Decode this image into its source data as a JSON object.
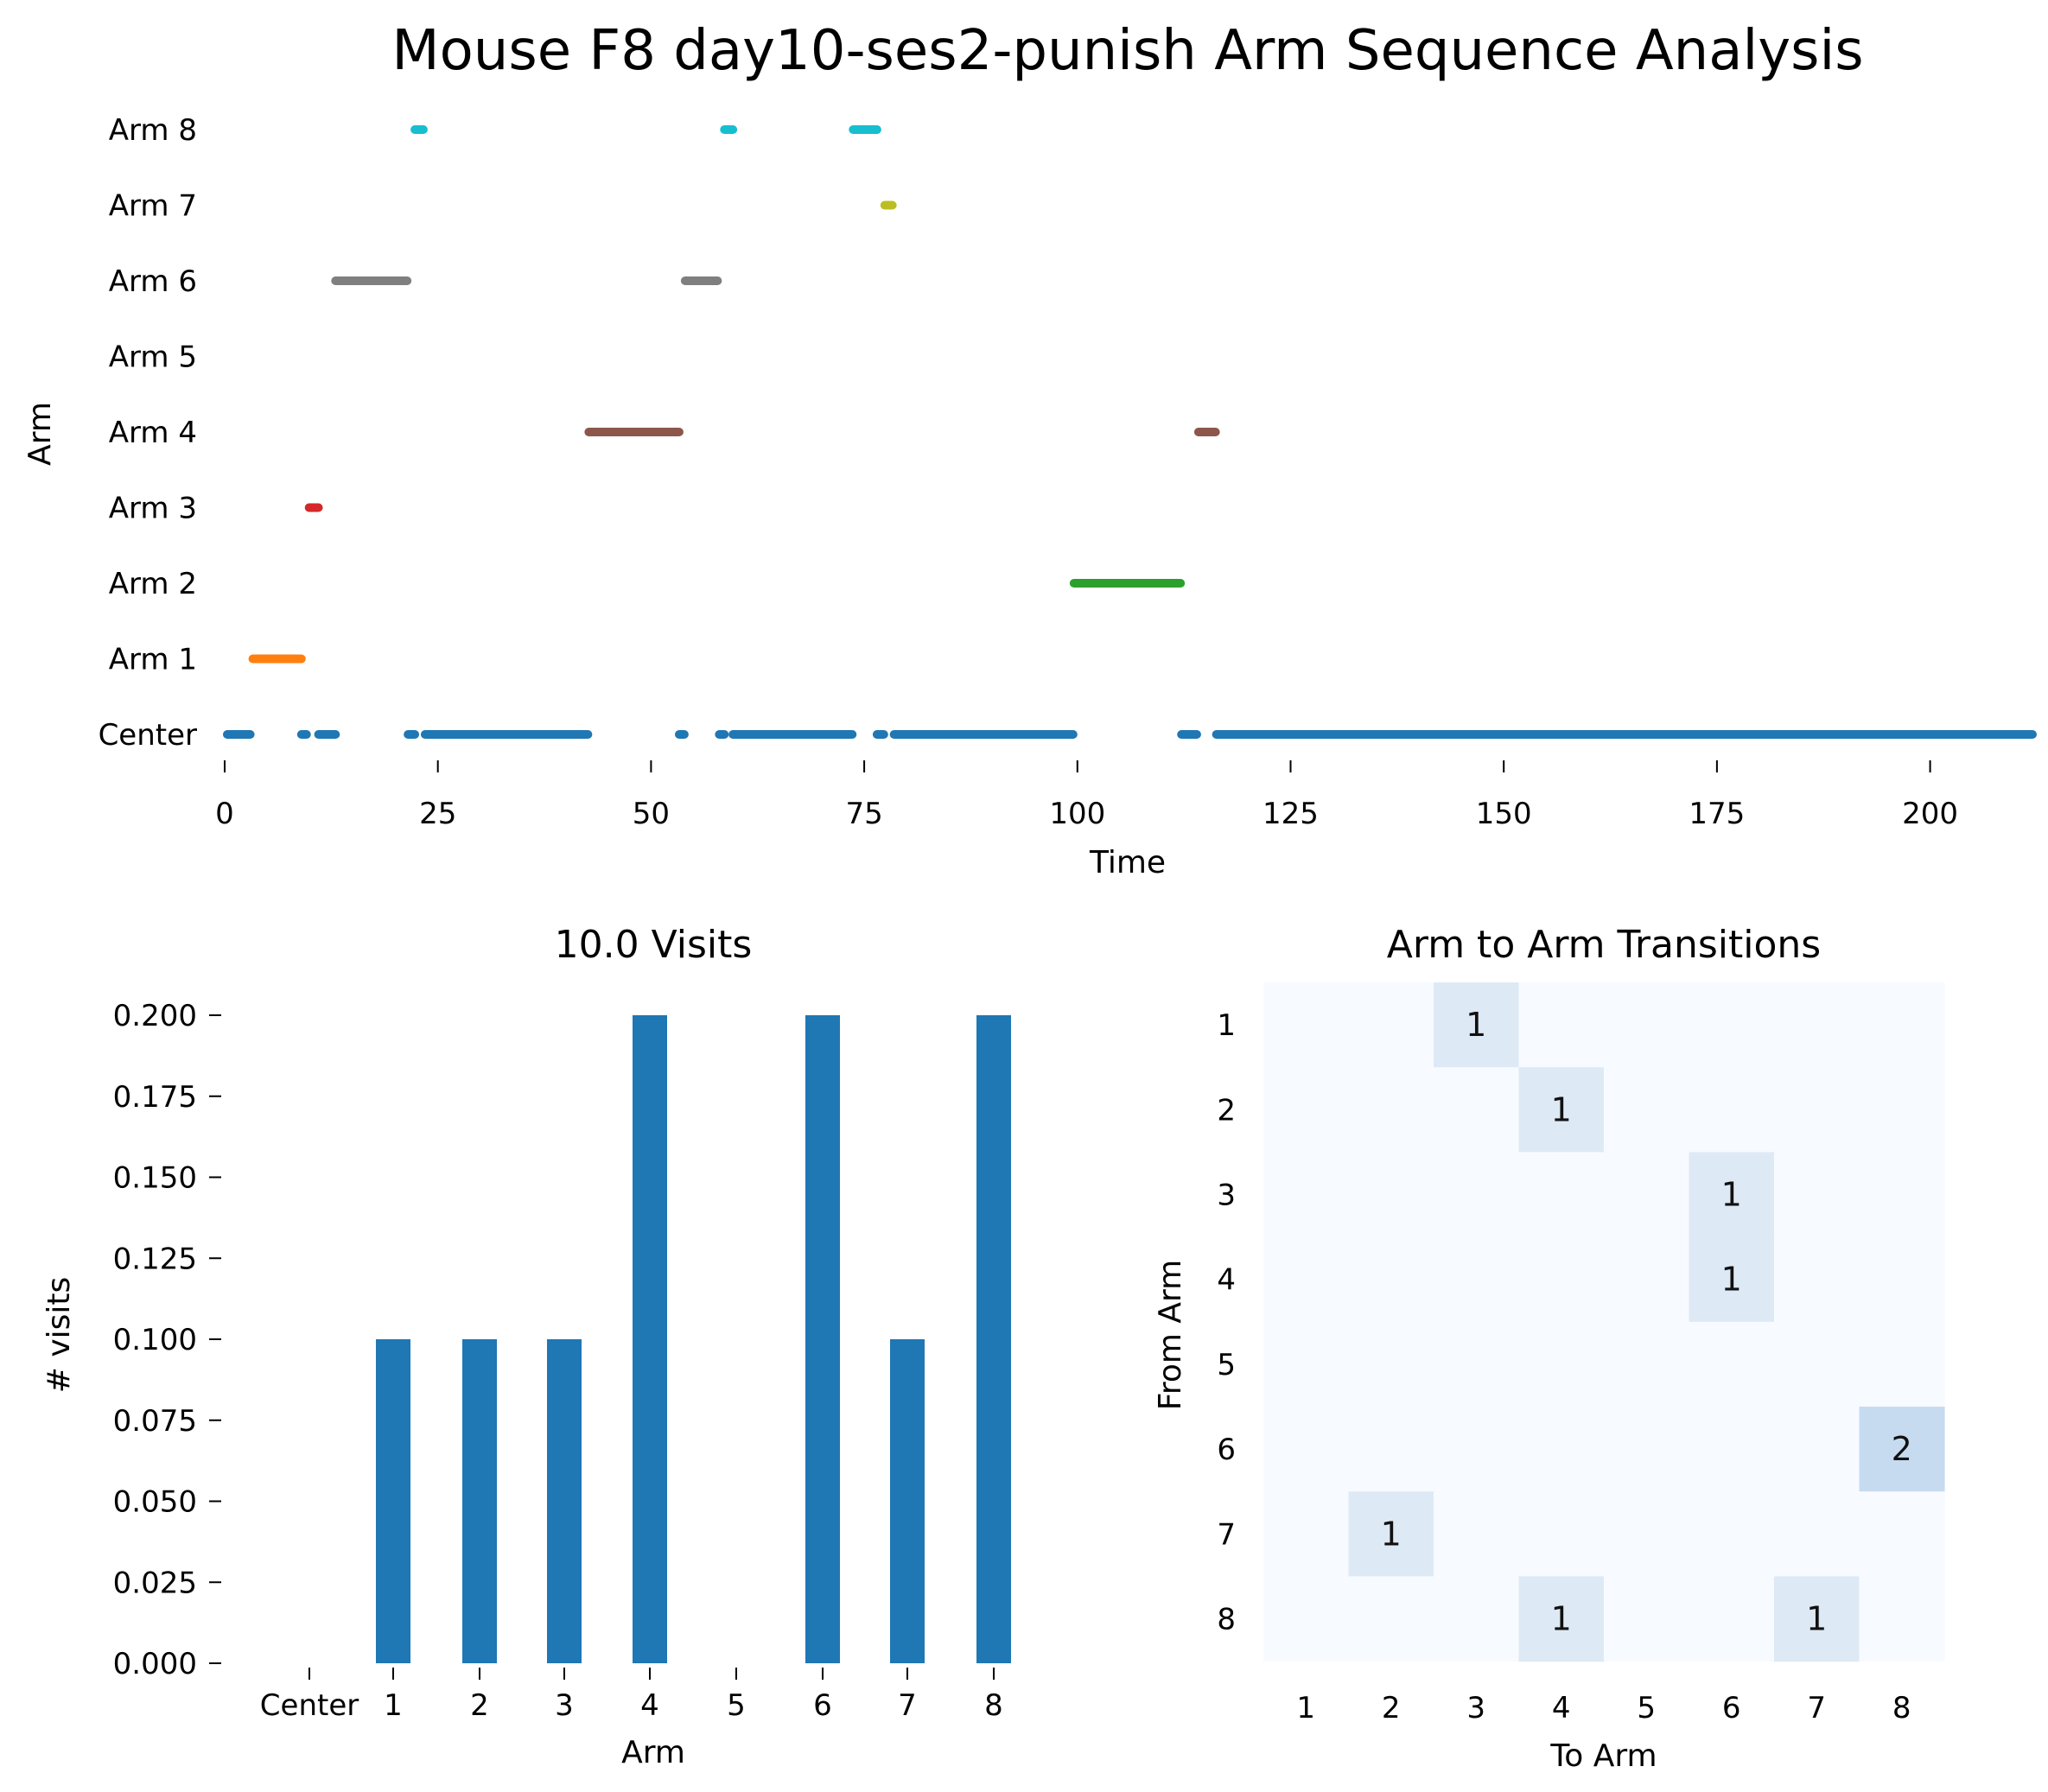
{
  "chart_data": [
    {
      "type": "timeline",
      "title": "Mouse F8 day10-ses2-punish Arm Sequence Analysis",
      "xlabel": "Time",
      "ylabel": "Arm",
      "xlim": [
        0,
        212
      ],
      "xticks": [
        0,
        25,
        50,
        75,
        100,
        125,
        150,
        175,
        200
      ],
      "rows": [
        "Center",
        "Arm 1",
        "Arm 2",
        "Arm 3",
        "Arm 4",
        "Arm 5",
        "Arm 6",
        "Arm 7",
        "Arm 8"
      ],
      "colors": {
        "Center": "#1f77b4",
        "Arm 1": "#ff7f0e",
        "Arm 2": "#2ca02c",
        "Arm 3": "#d62728",
        "Arm 4": "#8c564b",
        "Arm 5": "#9467bd",
        "Arm 6": "#7f7f7f",
        "Arm 7": "#bcbd22",
        "Arm 8": "#17becf"
      },
      "segments": [
        {
          "row": "Center",
          "start": 0.3,
          "end": 3.0
        },
        {
          "row": "Center",
          "start": 9.0,
          "end": 9.6
        },
        {
          "row": "Center",
          "start": 11.0,
          "end": 13.0
        },
        {
          "row": "Center",
          "start": 21.5,
          "end": 22.3
        },
        {
          "row": "Center",
          "start": 23.5,
          "end": 42.6
        },
        {
          "row": "Center",
          "start": 53.3,
          "end": 53.9
        },
        {
          "row": "Center",
          "start": 58.0,
          "end": 58.6
        },
        {
          "row": "Center",
          "start": 59.6,
          "end": 73.6
        },
        {
          "row": "Center",
          "start": 76.5,
          "end": 77.3
        },
        {
          "row": "Center",
          "start": 78.5,
          "end": 99.5
        },
        {
          "row": "Center",
          "start": 112.2,
          "end": 114.0
        },
        {
          "row": "Center",
          "start": 116.3,
          "end": 212
        },
        {
          "row": "Arm 1",
          "start": 3.3,
          "end": 9.0
        },
        {
          "row": "Arm 3",
          "start": 9.9,
          "end": 11.0
        },
        {
          "row": "Arm 6",
          "start": 13.0,
          "end": 21.4
        },
        {
          "row": "Arm 8",
          "start": 22.3,
          "end": 23.3
        },
        {
          "row": "Arm 4",
          "start": 42.7,
          "end": 53.3
        },
        {
          "row": "Arm 6",
          "start": 54.0,
          "end": 57.8
        },
        {
          "row": "Arm 8",
          "start": 58.6,
          "end": 59.6
        },
        {
          "row": "Arm 8",
          "start": 73.7,
          "end": 76.5
        },
        {
          "row": "Arm 7",
          "start": 77.4,
          "end": 78.3
        },
        {
          "row": "Arm 2",
          "start": 99.6,
          "end": 112.1
        },
        {
          "row": "Arm 4",
          "start": 114.2,
          "end": 116.2
        }
      ]
    },
    {
      "type": "bar",
      "title": "10.0 Visits",
      "xlabel": "Arm",
      "ylabel": "# visits",
      "categories": [
        "Center",
        "1",
        "2",
        "3",
        "4",
        "5",
        "6",
        "7",
        "8"
      ],
      "values": [
        0,
        0.1,
        0.1,
        0.1,
        0.2,
        0,
        0.2,
        0.1,
        0.2
      ],
      "ylim": [
        0,
        0.2
      ],
      "yticks": [
        "0.000",
        "0.025",
        "0.050",
        "0.075",
        "0.100",
        "0.125",
        "0.150",
        "0.175",
        "0.200"
      ],
      "color": "#1f77b4"
    },
    {
      "type": "heatmap",
      "title": "Arm to Arm Transitions",
      "xlabel": "To Arm",
      "ylabel": "From Arm",
      "row_labels": [
        "1",
        "2",
        "3",
        "4",
        "5",
        "6",
        "7",
        "8"
      ],
      "col_labels": [
        "1",
        "2",
        "3",
        "4",
        "5",
        "6",
        "7",
        "8"
      ],
      "values": [
        [
          0,
          0,
          1,
          0,
          0,
          0,
          0,
          0
        ],
        [
          0,
          0,
          0,
          1,
          0,
          0,
          0,
          0
        ],
        [
          0,
          0,
          0,
          0,
          0,
          1,
          0,
          0
        ],
        [
          0,
          0,
          0,
          0,
          0,
          1,
          0,
          0
        ],
        [
          0,
          0,
          0,
          0,
          0,
          0,
          0,
          0
        ],
        [
          0,
          0,
          0,
          0,
          0,
          0,
          0,
          2
        ],
        [
          0,
          1,
          0,
          0,
          0,
          0,
          0,
          0
        ],
        [
          0,
          0,
          0,
          1,
          0,
          0,
          1,
          0
        ]
      ],
      "colormap": "Blues",
      "color_scale": [
        "#f7fbff",
        "#dee9f6",
        "#c6dbef"
      ]
    }
  ]
}
